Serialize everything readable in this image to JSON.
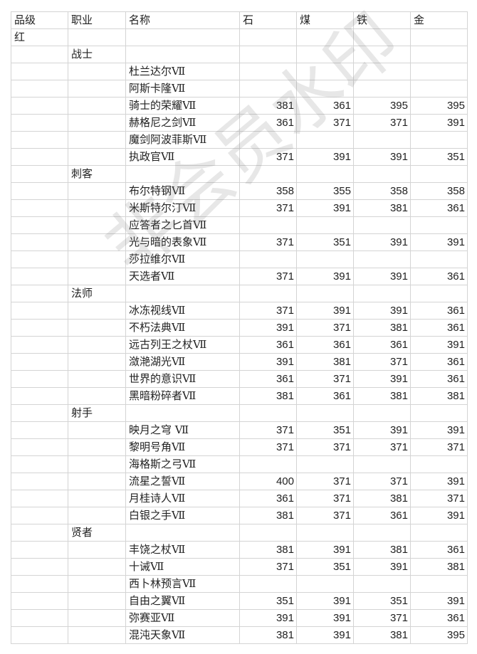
{
  "headers": [
    "品级",
    "职业",
    "名称",
    "石",
    "煤",
    "铁",
    "金"
  ],
  "watermark": "非会员水印",
  "rows": [
    {
      "grade": "红",
      "class": "",
      "name": "",
      "v": [
        "",
        "",
        "",
        ""
      ]
    },
    {
      "grade": "",
      "class": "战士",
      "name": "",
      "v": [
        "",
        "",
        "",
        ""
      ]
    },
    {
      "grade": "",
      "class": "",
      "name": "杜兰达尔Ⅶ",
      "v": [
        "",
        "",
        "",
        ""
      ]
    },
    {
      "grade": "",
      "class": "",
      "name": "阿斯卡隆Ⅶ",
      "v": [
        "",
        "",
        "",
        ""
      ]
    },
    {
      "grade": "",
      "class": "",
      "name": "骑士的荣耀Ⅶ",
      "v": [
        "381",
        "361",
        "395",
        "395"
      ]
    },
    {
      "grade": "",
      "class": "",
      "name": "赫格尼之剑Ⅶ",
      "v": [
        "361",
        "371",
        "371",
        "391"
      ]
    },
    {
      "grade": "",
      "class": "",
      "name": "魔剑阿波菲斯Ⅶ",
      "v": [
        "",
        "",
        "",
        ""
      ]
    },
    {
      "grade": "",
      "class": "",
      "name": "执政官Ⅶ",
      "v": [
        "371",
        "391",
        "391",
        "351"
      ]
    },
    {
      "grade": "",
      "class": "刺客",
      "name": "",
      "v": [
        "",
        "",
        "",
        ""
      ]
    },
    {
      "grade": "",
      "class": "",
      "name": "布尔特钢Ⅶ",
      "v": [
        "358",
        "355",
        "358",
        "358"
      ]
    },
    {
      "grade": "",
      "class": "",
      "name": "米斯特尔汀Ⅶ",
      "v": [
        "371",
        "391",
        "381",
        "361"
      ]
    },
    {
      "grade": "",
      "class": "",
      "name": "应答者之匕首Ⅶ",
      "v": [
        "",
        "",
        "",
        ""
      ]
    },
    {
      "grade": "",
      "class": "",
      "name": "光与暗的表象Ⅶ",
      "v": [
        "371",
        "351",
        "391",
        "391"
      ]
    },
    {
      "grade": "",
      "class": "",
      "name": "莎拉维尔Ⅶ",
      "v": [
        "",
        "",
        "",
        ""
      ]
    },
    {
      "grade": "",
      "class": "",
      "name": "天选者Ⅶ",
      "v": [
        "371",
        "391",
        "391",
        "361"
      ]
    },
    {
      "grade": "",
      "class": "法师",
      "name": "",
      "v": [
        "",
        "",
        "",
        ""
      ]
    },
    {
      "grade": "",
      "class": "",
      "name": "冰冻视线Ⅶ",
      "v": [
        "371",
        "391",
        "391",
        "361"
      ]
    },
    {
      "grade": "",
      "class": "",
      "name": "不朽法典Ⅶ",
      "v": [
        "391",
        "371",
        "381",
        "361"
      ]
    },
    {
      "grade": "",
      "class": "",
      "name": "远古列王之杖Ⅶ",
      "v": [
        "361",
        "361",
        "361",
        "391"
      ]
    },
    {
      "grade": "",
      "class": "",
      "name": "潋滟湖光Ⅶ",
      "v": [
        "391",
        "381",
        "371",
        "361"
      ]
    },
    {
      "grade": "",
      "class": "",
      "name": "世界的意识Ⅶ",
      "v": [
        "361",
        "371",
        "391",
        "361"
      ]
    },
    {
      "grade": "",
      "class": "",
      "name": "黑暗粉碎者Ⅶ",
      "v": [
        "381",
        "361",
        "381",
        "381"
      ]
    },
    {
      "grade": "",
      "class": "射手",
      "name": "",
      "v": [
        "",
        "",
        "",
        ""
      ]
    },
    {
      "grade": "",
      "class": "",
      "name": "映月之穹  Ⅶ",
      "v": [
        "371",
        "351",
        "391",
        "391"
      ]
    },
    {
      "grade": "",
      "class": "",
      "name": "黎明号角Ⅶ",
      "v": [
        "371",
        "371",
        "371",
        "371"
      ]
    },
    {
      "grade": "",
      "class": "",
      "name": "海格斯之弓Ⅶ",
      "v": [
        "",
        "",
        "",
        ""
      ]
    },
    {
      "grade": "",
      "class": "",
      "name": "流星之誓Ⅶ",
      "v": [
        "400",
        "371",
        "371",
        "391"
      ]
    },
    {
      "grade": "",
      "class": "",
      "name": "月桂诗人Ⅶ",
      "v": [
        "361",
        "371",
        "381",
        "371"
      ]
    },
    {
      "grade": "",
      "class": "",
      "name": "白银之手Ⅶ",
      "v": [
        "381",
        "371",
        "361",
        "391"
      ]
    },
    {
      "grade": "",
      "class": "贤者",
      "name": "",
      "v": [
        "",
        "",
        "",
        ""
      ]
    },
    {
      "grade": "",
      "class": "",
      "name": "丰饶之杖Ⅶ",
      "v": [
        "381",
        "391",
        "381",
        "361"
      ]
    },
    {
      "grade": "",
      "class": "",
      "name": "十诫Ⅶ",
      "v": [
        "371",
        "351",
        "391",
        "381"
      ]
    },
    {
      "grade": "",
      "class": "",
      "name": "西卜林预言Ⅶ",
      "v": [
        "",
        "",
        "",
        ""
      ]
    },
    {
      "grade": "",
      "class": "",
      "name": "自由之翼Ⅶ",
      "v": [
        "351",
        "391",
        "351",
        "391"
      ]
    },
    {
      "grade": "",
      "class": "",
      "name": "弥赛亚Ⅶ",
      "v": [
        "391",
        "391",
        "371",
        "361"
      ]
    },
    {
      "grade": "",
      "class": "",
      "name": "混沌天象Ⅶ",
      "v": [
        "381",
        "391",
        "381",
        "395"
      ]
    }
  ]
}
